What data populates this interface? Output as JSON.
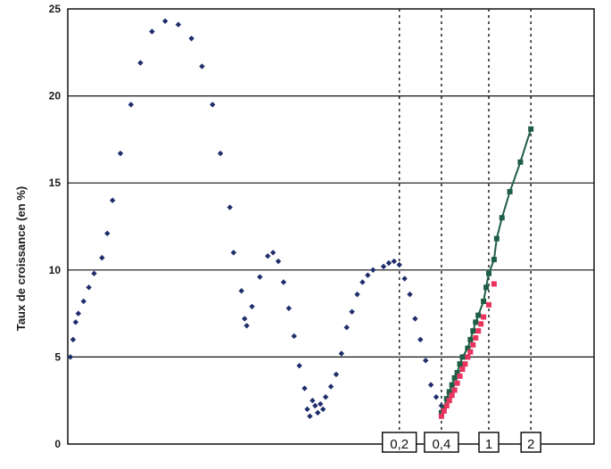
{
  "chart_data": {
    "type": "scatter",
    "ylabel": "Taux de croissance (en %)",
    "ylim": [
      0,
      25
    ],
    "yticks": [
      "0",
      "5",
      "10",
      "15",
      "20",
      "25"
    ],
    "grid": "horizontal",
    "xlim": [
      0,
      100
    ],
    "marker_lines": [
      {
        "label": "0,2",
        "x": 63
      },
      {
        "label": "0,4",
        "x": 71
      },
      {
        "label": "1",
        "x": 80
      },
      {
        "label": "2",
        "x": 88
      }
    ],
    "series": [
      {
        "color": "#1f2d6b",
        "marker": "diamond",
        "points": [
          [
            0.5,
            5.0
          ],
          [
            1,
            6.0
          ],
          [
            1.5,
            7.0
          ],
          [
            2,
            7.5
          ],
          [
            3,
            8.2
          ],
          [
            4,
            9.0
          ],
          [
            5,
            9.8
          ],
          [
            6.5,
            10.7
          ],
          [
            7.5,
            12.1
          ],
          [
            8.5,
            14.0
          ],
          [
            10,
            16.7
          ],
          [
            12,
            19.5
          ],
          [
            13.8,
            21.9
          ],
          [
            16,
            23.7
          ],
          [
            18.5,
            24.3
          ],
          [
            21,
            24.1
          ],
          [
            23.5,
            23.3
          ],
          [
            25.5,
            21.7
          ],
          [
            27.5,
            19.5
          ],
          [
            29,
            16.7
          ],
          [
            30.8,
            13.6
          ],
          [
            31.5,
            11.0
          ],
          [
            33,
            8.8
          ],
          [
            33.6,
            7.2
          ],
          [
            34,
            6.8
          ],
          [
            35,
            7.9
          ],
          [
            36.5,
            9.6
          ],
          [
            38,
            10.8
          ],
          [
            39,
            11.0
          ],
          [
            40,
            10.5
          ],
          [
            41,
            9.3
          ],
          [
            42,
            7.8
          ],
          [
            43,
            6.2
          ],
          [
            44,
            4.5
          ],
          [
            45,
            3.2
          ],
          [
            45.5,
            2.0
          ],
          [
            46,
            1.6
          ],
          [
            46.5,
            2.5
          ],
          [
            47,
            2.2
          ],
          [
            47.5,
            1.8
          ],
          [
            48,
            2.3
          ],
          [
            48.5,
            2.0
          ],
          [
            49,
            2.7
          ],
          [
            50,
            3.3
          ],
          [
            51,
            4.0
          ],
          [
            52,
            5.2
          ],
          [
            53,
            6.7
          ],
          [
            54,
            7.6
          ],
          [
            55,
            8.6
          ],
          [
            56,
            9.3
          ],
          [
            57,
            9.7
          ],
          [
            58,
            10.0
          ],
          [
            60,
            10.2
          ],
          [
            61,
            10.4
          ],
          [
            62,
            10.5
          ],
          [
            63,
            10.3
          ],
          [
            64,
            9.5
          ],
          [
            65,
            8.6
          ],
          [
            66,
            7.2
          ],
          [
            67,
            6.0
          ],
          [
            68,
            4.8
          ],
          [
            69,
            3.4
          ],
          [
            70,
            2.7
          ],
          [
            71,
            2.2
          ]
        ]
      },
      {
        "color": "#1f5e46",
        "marker": "square",
        "line": true,
        "points": [
          [
            71,
            1.8
          ],
          [
            71.5,
            2.1
          ],
          [
            72,
            2.6
          ],
          [
            72.5,
            3.0
          ],
          [
            73,
            3.4
          ],
          [
            73.5,
            3.8
          ],
          [
            74,
            4.1
          ],
          [
            74.5,
            4.6
          ],
          [
            75,
            5.0
          ],
          [
            76,
            5.5
          ],
          [
            76.5,
            6.0
          ],
          [
            77,
            6.5
          ],
          [
            77.5,
            7.0
          ],
          [
            78,
            7.4
          ],
          [
            79,
            8.2
          ],
          [
            79.5,
            9.0
          ],
          [
            80,
            9.8
          ],
          [
            81,
            10.6
          ],
          [
            81.5,
            11.8
          ],
          [
            82.5,
            13.0
          ],
          [
            84,
            14.5
          ],
          [
            86,
            16.2
          ],
          [
            88,
            18.1
          ]
        ]
      },
      {
        "color": "#e8335e",
        "marker": "square",
        "points": [
          [
            71,
            1.6
          ],
          [
            71.5,
            1.9
          ],
          [
            72,
            2.2
          ],
          [
            72.5,
            2.5
          ],
          [
            73,
            2.8
          ],
          [
            73.5,
            3.1
          ],
          [
            74,
            3.5
          ],
          [
            74.5,
            3.9
          ],
          [
            75,
            4.3
          ],
          [
            75.5,
            4.6
          ],
          [
            76,
            5.0
          ],
          [
            76.5,
            5.3
          ],
          [
            77,
            5.7
          ],
          [
            77.5,
            6.1
          ],
          [
            78,
            6.5
          ],
          [
            78.5,
            6.9
          ],
          [
            79,
            7.3
          ],
          [
            80,
            8.0
          ],
          [
            81,
            9.2
          ]
        ]
      }
    ]
  }
}
